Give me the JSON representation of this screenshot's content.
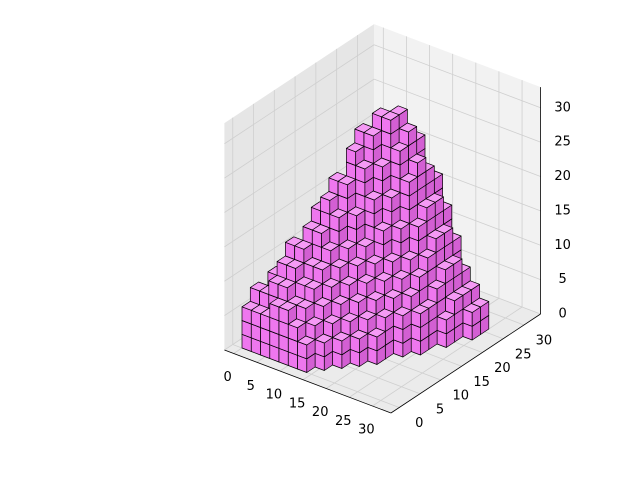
{
  "chart_data": {
    "type": "voxels",
    "title": "",
    "xlabel": "",
    "ylabel": "",
    "zlabel": "",
    "grid": true,
    "colors": {
      "voxel_face": "#ee77ee",
      "voxel_edge": "#000000",
      "pane_back": "#f2f2f2",
      "pane_side": "#e6e6e6",
      "pane_floor": "#ebebeb",
      "grid": "#cfcfcf"
    },
    "axes": {
      "x": {
        "lim": [
          0,
          32
        ],
        "ticks": [
          0,
          5,
          10,
          15,
          20,
          25,
          30
        ],
        "tick_labels": [
          "0",
          "5",
          "10",
          "15",
          "20",
          "25",
          "30"
        ]
      },
      "y": {
        "lim": [
          0,
          32
        ],
        "ticks": [
          0,
          5,
          10,
          15,
          20,
          25,
          30
        ],
        "tick_labels": [
          "0",
          "5",
          "10",
          "15",
          "20",
          "25",
          "30"
        ]
      },
      "z": {
        "lim": [
          0,
          32
        ],
        "ticks": [
          0,
          5,
          10,
          15,
          20,
          25,
          30
        ],
        "tick_labels": [
          "0",
          "5",
          "10",
          "15",
          "20",
          "25",
          "30"
        ]
      }
    },
    "voxel_columns_note": "Approximate column-top heights (z units) of the voxel body, sampled on a 2-unit x/y grid.",
    "columns": [
      {
        "x": 2,
        "y": 2,
        "z": 6
      },
      {
        "x": 4,
        "y": 2,
        "z": 6
      },
      {
        "x": 6,
        "y": 2,
        "z": 6
      },
      {
        "x": 8,
        "y": 2,
        "z": 8
      },
      {
        "x": 10,
        "y": 2,
        "z": 8
      },
      {
        "x": 12,
        "y": 2,
        "z": 6
      },
      {
        "x": 14,
        "y": 2,
        "z": 4
      },
      {
        "x": 2,
        "y": 4,
        "z": 8
      },
      {
        "x": 4,
        "y": 4,
        "z": 8
      },
      {
        "x": 6,
        "y": 4,
        "z": 10
      },
      {
        "x": 8,
        "y": 4,
        "z": 10
      },
      {
        "x": 10,
        "y": 4,
        "z": 8
      },
      {
        "x": 12,
        "y": 4,
        "z": 8
      },
      {
        "x": 14,
        "y": 4,
        "z": 6
      },
      {
        "x": 16,
        "y": 4,
        "z": 4
      },
      {
        "x": 4,
        "y": 6,
        "z": 10
      },
      {
        "x": 6,
        "y": 6,
        "z": 12
      },
      {
        "x": 8,
        "y": 6,
        "z": 12
      },
      {
        "x": 10,
        "y": 6,
        "z": 10
      },
      {
        "x": 12,
        "y": 6,
        "z": 10
      },
      {
        "x": 14,
        "y": 6,
        "z": 8
      },
      {
        "x": 16,
        "y": 6,
        "z": 6
      },
      {
        "x": 18,
        "y": 6,
        "z": 4
      },
      {
        "x": 6,
        "y": 8,
        "z": 14
      },
      {
        "x": 8,
        "y": 8,
        "z": 14
      },
      {
        "x": 10,
        "y": 8,
        "z": 12
      },
      {
        "x": 12,
        "y": 8,
        "z": 12
      },
      {
        "x": 14,
        "y": 8,
        "z": 10
      },
      {
        "x": 16,
        "y": 8,
        "z": 8
      },
      {
        "x": 18,
        "y": 8,
        "z": 6
      },
      {
        "x": 20,
        "y": 8,
        "z": 4
      },
      {
        "x": 8,
        "y": 10,
        "z": 16
      },
      {
        "x": 10,
        "y": 10,
        "z": 16
      },
      {
        "x": 12,
        "y": 10,
        "z": 14
      },
      {
        "x": 14,
        "y": 10,
        "z": 12
      },
      {
        "x": 16,
        "y": 10,
        "z": 10
      },
      {
        "x": 18,
        "y": 10,
        "z": 8
      },
      {
        "x": 20,
        "y": 10,
        "z": 6
      },
      {
        "x": 22,
        "y": 10,
        "z": 4
      },
      {
        "x": 8,
        "y": 12,
        "z": 18
      },
      {
        "x": 10,
        "y": 12,
        "z": 20
      },
      {
        "x": 12,
        "y": 12,
        "z": 18
      },
      {
        "x": 14,
        "y": 12,
        "z": 14
      },
      {
        "x": 16,
        "y": 12,
        "z": 12
      },
      {
        "x": 18,
        "y": 12,
        "z": 10
      },
      {
        "x": 20,
        "y": 12,
        "z": 8
      },
      {
        "x": 22,
        "y": 12,
        "z": 6
      },
      {
        "x": 10,
        "y": 14,
        "z": 22
      },
      {
        "x": 12,
        "y": 14,
        "z": 22
      },
      {
        "x": 14,
        "y": 14,
        "z": 18
      },
      {
        "x": 16,
        "y": 14,
        "z": 14
      },
      {
        "x": 18,
        "y": 14,
        "z": 12
      },
      {
        "x": 20,
        "y": 14,
        "z": 10
      },
      {
        "x": 22,
        "y": 14,
        "z": 8
      },
      {
        "x": 24,
        "y": 14,
        "z": 6
      },
      {
        "x": 12,
        "y": 16,
        "z": 26
      },
      {
        "x": 14,
        "y": 16,
        "z": 24
      },
      {
        "x": 16,
        "y": 16,
        "z": 20
      },
      {
        "x": 18,
        "y": 16,
        "z": 16
      },
      {
        "x": 20,
        "y": 16,
        "z": 12
      },
      {
        "x": 22,
        "y": 16,
        "z": 10
      },
      {
        "x": 24,
        "y": 16,
        "z": 8
      },
      {
        "x": 26,
        "y": 16,
        "z": 6
      },
      {
        "x": 12,
        "y": 18,
        "z": 28
      },
      {
        "x": 14,
        "y": 18,
        "z": 28
      },
      {
        "x": 16,
        "y": 18,
        "z": 24
      },
      {
        "x": 18,
        "y": 18,
        "z": 20
      },
      {
        "x": 20,
        "y": 18,
        "z": 16
      },
      {
        "x": 22,
        "y": 18,
        "z": 12
      },
      {
        "x": 24,
        "y": 18,
        "z": 10
      },
      {
        "x": 26,
        "y": 18,
        "z": 6
      },
      {
        "x": 14,
        "y": 20,
        "z": 30
      },
      {
        "x": 16,
        "y": 20,
        "z": 30
      },
      {
        "x": 18,
        "y": 20,
        "z": 26
      },
      {
        "x": 20,
        "y": 20,
        "z": 22
      },
      {
        "x": 22,
        "y": 20,
        "z": 16
      },
      {
        "x": 24,
        "y": 20,
        "z": 12
      },
      {
        "x": 26,
        "y": 20,
        "z": 8
      },
      {
        "x": 28,
        "y": 20,
        "z": 4
      },
      {
        "x": 16,
        "y": 22,
        "z": 30
      },
      {
        "x": 18,
        "y": 22,
        "z": 28
      },
      {
        "x": 20,
        "y": 22,
        "z": 24
      },
      {
        "x": 22,
        "y": 22,
        "z": 18
      },
      {
        "x": 24,
        "y": 22,
        "z": 14
      },
      {
        "x": 26,
        "y": 22,
        "z": 10
      },
      {
        "x": 28,
        "y": 22,
        "z": 6
      },
      {
        "x": 18,
        "y": 24,
        "z": 26
      },
      {
        "x": 20,
        "y": 24,
        "z": 22
      },
      {
        "x": 22,
        "y": 24,
        "z": 18
      },
      {
        "x": 24,
        "y": 24,
        "z": 14
      },
      {
        "x": 26,
        "y": 24,
        "z": 10
      },
      {
        "x": 28,
        "y": 24,
        "z": 6
      },
      {
        "x": 30,
        "y": 24,
        "z": 4
      },
      {
        "x": 20,
        "y": 26,
        "z": 20
      },
      {
        "x": 22,
        "y": 26,
        "z": 16
      },
      {
        "x": 24,
        "y": 26,
        "z": 12
      },
      {
        "x": 26,
        "y": 26,
        "z": 8
      },
      {
        "x": 28,
        "y": 26,
        "z": 6
      },
      {
        "x": 30,
        "y": 26,
        "z": 4
      }
    ]
  }
}
